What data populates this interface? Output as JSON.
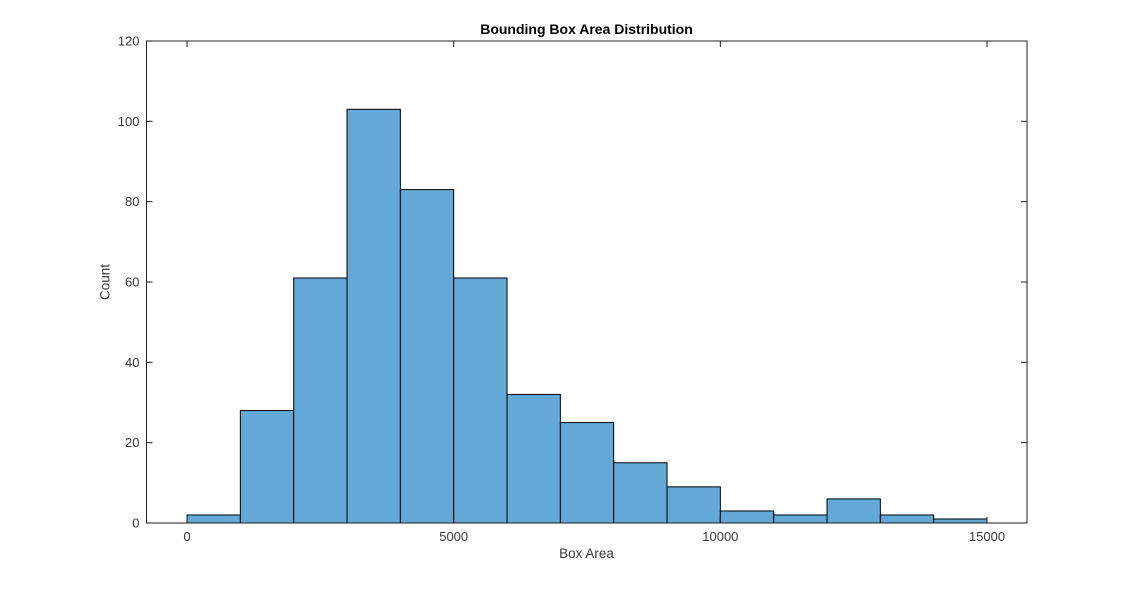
{
  "figure": {
    "background_color": "#ffffff"
  },
  "chart_data": {
    "type": "bar",
    "subtype": "histogram",
    "title": "Bounding Box Area Distribution",
    "xlabel": "Box Area",
    "ylabel": "Count",
    "bin_width": 1000,
    "bin_edges": [
      0,
      1000,
      2000,
      3000,
      4000,
      5000,
      6000,
      7000,
      8000,
      9000,
      10000,
      11000,
      12000,
      13000,
      14000,
      15000
    ],
    "counts": [
      2,
      28,
      61,
      103,
      83,
      61,
      32,
      25,
      15,
      9,
      3,
      2,
      6,
      2,
      1
    ],
    "xticks": [
      0,
      5000,
      10000,
      15000
    ],
    "xtick_labels": [
      "0",
      "5000",
      "10000",
      "15000"
    ],
    "yticks": [
      0,
      20,
      40,
      60,
      80,
      100,
      120
    ],
    "ytick_labels": [
      "0",
      "20",
      "40",
      "60",
      "80",
      "100",
      "120"
    ],
    "xlim": [
      -760,
      15750
    ],
    "ylim": [
      0,
      120
    ],
    "grid": false,
    "legend_position": "none",
    "colors": {
      "bar_fill": "#63A8D6",
      "bar_edge": "#000000",
      "axis": "#1f1f1f",
      "tick_label": "#3a3a3a",
      "title": "#000000"
    }
  }
}
